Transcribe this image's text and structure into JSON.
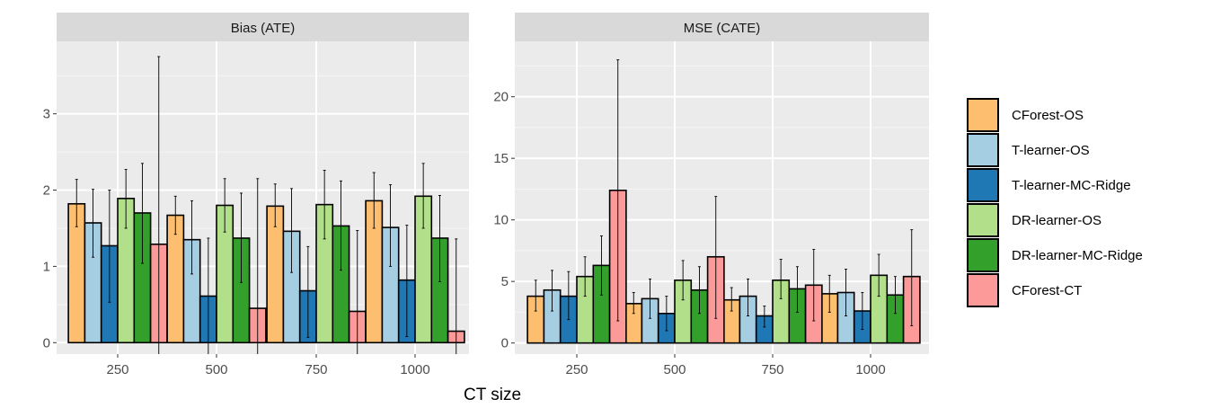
{
  "chart_data": {
    "type": "bar",
    "xlabel": "CT size",
    "categories": [
      "250",
      "500",
      "750",
      "1000"
    ],
    "legend": {
      "placement": "right",
      "entries": [
        {
          "name": "CForest-OS",
          "color": "#FDBF6F"
        },
        {
          "name": "T-learner-OS",
          "color": "#A6CEE3"
        },
        {
          "name": "T-learner-MC-Ridge",
          "color": "#1F78B4"
        },
        {
          "name": "DR-learner-OS",
          "color": "#B2DF8A"
        },
        {
          "name": "DR-learner-MC-Ridge",
          "color": "#33A02C"
        },
        {
          "name": "CForest-CT",
          "color": "#FB9A99"
        }
      ]
    },
    "panels": [
      {
        "title": "Bias (ATE)",
        "ylim": [
          -0.15,
          3.95
        ],
        "yticks": [
          0,
          1,
          2,
          3
        ],
        "series": [
          {
            "name": "CForest-OS",
            "values": [
              1.82,
              1.67,
              1.79,
              1.86
            ],
            "err_low": [
              1.52,
              1.42,
              1.52,
              1.5
            ],
            "err_high": [
              2.14,
              1.92,
              2.08,
              2.23
            ]
          },
          {
            "name": "T-learner-OS",
            "values": [
              1.57,
              1.35,
              1.46,
              1.51
            ],
            "err_low": [
              1.12,
              0.9,
              0.92,
              1.0
            ],
            "err_high": [
              2.01,
              1.86,
              2.02,
              2.07
            ]
          },
          {
            "name": "T-learner-MC-Ridge",
            "values": [
              1.27,
              0.61,
              0.68,
              0.82
            ],
            "err_low": [
              0.53,
              -0.15,
              0.07,
              0.08
            ],
            "err_high": [
              2.0,
              1.37,
              1.26,
              1.54
            ]
          },
          {
            "name": "DR-learner-OS",
            "values": [
              1.89,
              1.8,
              1.81,
              1.92
            ],
            "err_low": [
              1.5,
              1.45,
              1.36,
              1.5
            ],
            "err_high": [
              2.27,
              2.15,
              2.26,
              2.35
            ]
          },
          {
            "name": "DR-learner-MC-Ridge",
            "values": [
              1.7,
              1.37,
              1.53,
              1.37
            ],
            "err_low": [
              1.04,
              0.79,
              0.95,
              0.8
            ],
            "err_high": [
              2.35,
              1.96,
              2.12,
              1.93
            ]
          },
          {
            "name": "CForest-CT",
            "values": [
              1.29,
              0.45,
              0.41,
              0.15
            ],
            "err_low": [
              -0.15,
              -0.15,
              -0.15,
              -0.15
            ],
            "err_high": [
              3.75,
              2.15,
              1.47,
              1.36
            ]
          }
        ]
      },
      {
        "title": "MSE (CATE)",
        "ylim": [
          -0.9,
          24.5
        ],
        "yticks": [
          0,
          5,
          10,
          15,
          20
        ],
        "series": [
          {
            "name": "CForest-OS",
            "values": [
              3.8,
              3.2,
              3.5,
              4.0
            ],
            "err_low": [
              2.6,
              2.4,
              2.6,
              2.5
            ],
            "err_high": [
              5.1,
              4.1,
              4.5,
              5.5
            ]
          },
          {
            "name": "T-learner-OS",
            "values": [
              4.3,
              3.6,
              3.8,
              4.1
            ],
            "err_low": [
              2.6,
              2.0,
              2.2,
              2.2
            ],
            "err_high": [
              5.9,
              5.2,
              5.2,
              6.0
            ]
          },
          {
            "name": "T-learner-MC-Ridge",
            "values": [
              3.8,
              2.4,
              2.2,
              2.6
            ],
            "err_low": [
              1.9,
              1.0,
              1.3,
              1.1
            ],
            "err_high": [
              5.8,
              3.8,
              3.0,
              4.1
            ]
          },
          {
            "name": "DR-learner-OS",
            "values": [
              5.4,
              5.1,
              5.1,
              5.5
            ],
            "err_low": [
              3.8,
              3.5,
              3.6,
              3.8
            ],
            "err_high": [
              7.0,
              6.7,
              6.8,
              7.2
            ]
          },
          {
            "name": "DR-learner-MC-Ridge",
            "values": [
              6.3,
              4.3,
              4.4,
              3.9
            ],
            "err_low": [
              3.9,
              2.4,
              2.5,
              2.4
            ],
            "err_high": [
              8.7,
              6.2,
              6.2,
              5.4
            ]
          },
          {
            "name": "CForest-CT",
            "values": [
              12.4,
              7.0,
              4.7,
              5.4
            ],
            "err_low": [
              1.8,
              2.0,
              1.8,
              1.4
            ],
            "err_high": [
              23.0,
              11.9,
              7.6,
              9.2
            ]
          }
        ]
      }
    ]
  }
}
